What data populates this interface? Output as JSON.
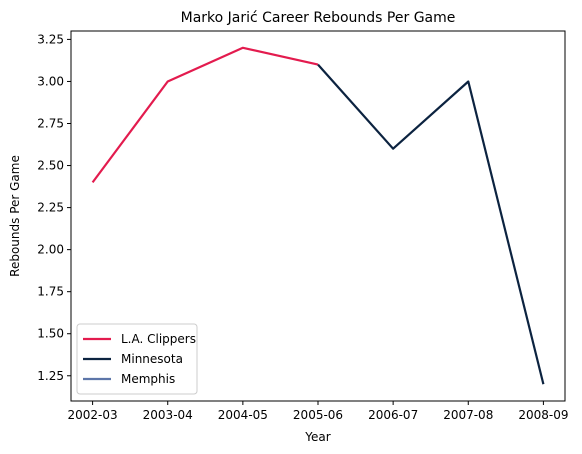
{
  "chart_data": {
    "type": "line",
    "title": "Marko Jarić Career Rebounds Per Game",
    "xlabel": "Year",
    "ylabel": "Rebounds Per Game",
    "categories": [
      "2002-03",
      "2003-04",
      "2004-05",
      "2005-06",
      "2006-07",
      "2007-08",
      "2008-09"
    ],
    "ylim": [
      1.1,
      3.3
    ],
    "yticks": [
      "1.25",
      "1.50",
      "1.75",
      "2.00",
      "2.25",
      "2.50",
      "2.75",
      "3.00",
      "3.25"
    ],
    "grid": false,
    "legend_position": "lower-left",
    "series": [
      {
        "name": "L.A. Clippers",
        "color": "#E31B4E",
        "points": [
          {
            "x": "2002-03",
            "y": 2.4
          },
          {
            "x": "2003-04",
            "y": 3.0
          },
          {
            "x": "2004-05",
            "y": 3.2
          },
          {
            "x": "2005-06",
            "y": 3.1
          }
        ]
      },
      {
        "name": "Minnesota",
        "color": "#0C2340",
        "points": [
          {
            "x": "2005-06",
            "y": 3.1
          },
          {
            "x": "2006-07",
            "y": 2.6
          },
          {
            "x": "2007-08",
            "y": 3.0
          },
          {
            "x": "2008-09",
            "y": 1.2
          }
        ]
      },
      {
        "name": "Memphis",
        "color": "#5D76A9",
        "points": []
      }
    ]
  }
}
